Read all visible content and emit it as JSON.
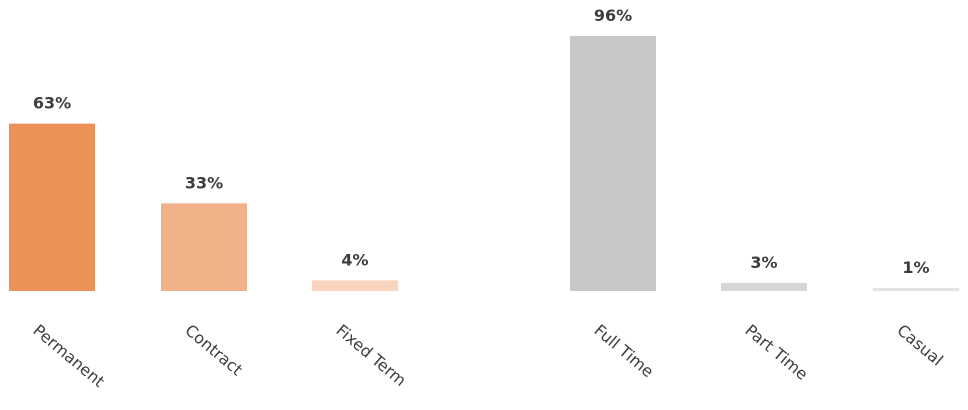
{
  "chart_data": [
    {
      "type": "bar",
      "categories": [
        "Permanent",
        "Contract",
        "Fixed Term"
      ],
      "values": [
        63,
        33,
        4
      ],
      "value_labels": [
        "63%",
        "33%",
        "4%"
      ],
      "colors": [
        "#eb9259",
        "#f1b289",
        "#f9d5bd"
      ],
      "ylim": [
        0,
        100
      ]
    },
    {
      "type": "bar",
      "categories": [
        "Full Time",
        "Part Time",
        "Casual"
      ],
      "values": [
        96,
        3,
        1
      ],
      "value_labels": [
        "96%",
        "3%",
        "1%"
      ],
      "colors": [
        "#c8c7c6",
        "#d6d6d5",
        "#e3e3e3"
      ],
      "ylim": [
        0,
        100
      ]
    }
  ]
}
